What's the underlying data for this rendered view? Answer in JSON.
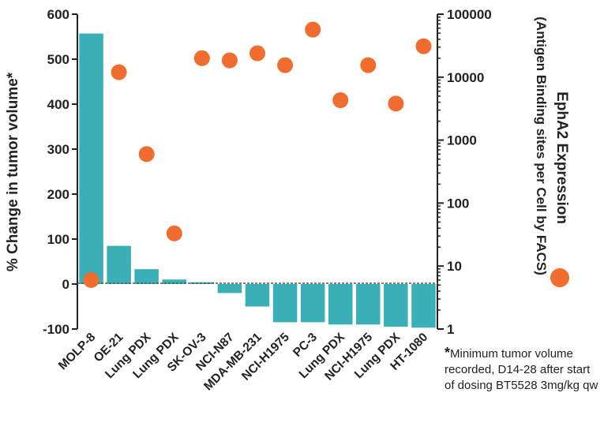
{
  "chart_data": {
    "type": "bar",
    "categories": [
      "MOLP-8",
      "OE-21",
      "Lung PDX",
      "Lung PDX",
      "SK-OV-3",
      "NCI-N87",
      "MDA-MB-231",
      "NCI-H1975",
      "PC-3",
      "Lung PDX",
      "NCI-H1975",
      "Lung PDX",
      "HT-1080"
    ],
    "series": [
      {
        "name": "% Change in tumor volume*",
        "kind": "bar",
        "axis": "left",
        "color": "#3BAFB7",
        "values": [
          557,
          85,
          33,
          10,
          4,
          -20,
          -50,
          -85,
          -85,
          -90,
          -90,
          -95,
          -97
        ]
      },
      {
        "name": "EphA2 Expression",
        "kind": "scatter",
        "axis": "right",
        "color": "#F06D2F",
        "values": [
          6,
          12000,
          600,
          33,
          20000,
          18500,
          24000,
          15500,
          57000,
          4300,
          15500,
          3800,
          31000
        ]
      }
    ],
    "title": "",
    "ylabel": "% Change in tumor volume*",
    "ylim": [
      -100,
      600
    ],
    "yticks": [
      "-100",
      "0",
      "100",
      "200",
      "300",
      "400",
      "500",
      "600"
    ],
    "y2label_line1": "EphA2 Expression",
    "y2label_line2": "(Antigen Binding sites per Cell by FACS)",
    "y2scale": "log",
    "y2lim": [
      1,
      100000
    ],
    "y2ticks": [
      "1",
      "10",
      "100",
      "1000",
      "10000",
      "100000"
    ],
    "legend_marker_color": "#F06D2F",
    "footnote_star": "*",
    "footnote_text": "Minimum tumor volume recorded, D14-28 after start of dosing BT5528 3mg/kg qw"
  }
}
